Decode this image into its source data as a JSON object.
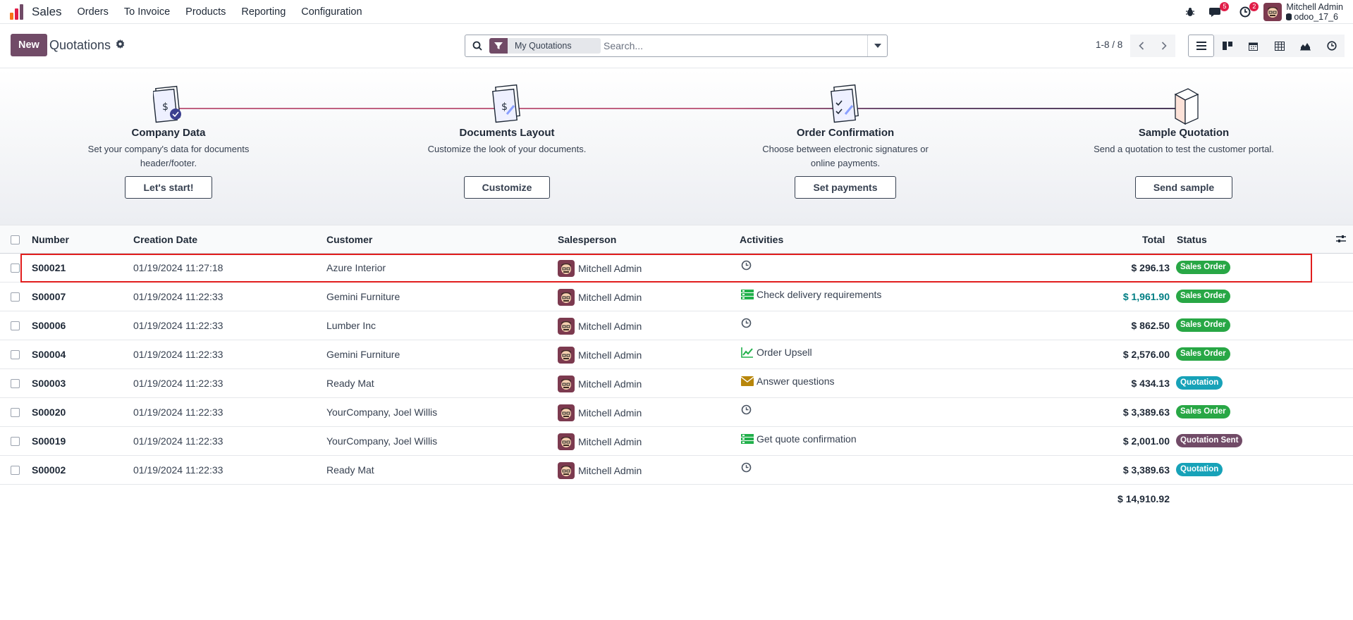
{
  "navbar": {
    "brand": "Sales",
    "menu": [
      "Orders",
      "To Invoice",
      "Products",
      "Reporting",
      "Configuration"
    ],
    "messages_count": "5",
    "activities_count": "2",
    "user_name": "Mitchell Admin",
    "db_name": "odoo_17_6"
  },
  "control": {
    "new_label": "New",
    "title": "Quotations",
    "facet": "My Quotations",
    "search_placeholder": "Search...",
    "pager": "1-8 / 8"
  },
  "onboarding": [
    {
      "title": "Company Data",
      "desc": "Set your company's data for documents header/footer.",
      "button": "Let's start!"
    },
    {
      "title": "Documents Layout",
      "desc": "Customize the look of your documents.",
      "button": "Customize"
    },
    {
      "title": "Order Confirmation",
      "desc": "Choose between electronic signatures or online payments.",
      "button": "Set payments"
    },
    {
      "title": "Sample Quotation",
      "desc": "Send a quotation to test the customer portal.",
      "button": "Send sample"
    }
  ],
  "table": {
    "headers": {
      "number": "Number",
      "date": "Creation Date",
      "customer": "Customer",
      "salesperson": "Salesperson",
      "activities": "Activities",
      "total": "Total",
      "status": "Status"
    },
    "rows": [
      {
        "number": "S00021",
        "date": "01/19/2024 11:27:18",
        "customer": "Azure Interior",
        "salesperson": "Mitchell Admin",
        "activity_icon": "clock-icon",
        "activity": "",
        "total": "$ 296.13",
        "status": "Sales Order"
      },
      {
        "number": "S00007",
        "date": "01/19/2024 11:22:33",
        "customer": "Gemini Furniture",
        "salesperson": "Mitchell Admin",
        "activity_icon": "tasks-icon",
        "activity": "Check delivery requirements",
        "total": "$ 1,961.90",
        "status": "Sales Order"
      },
      {
        "number": "S00006",
        "date": "01/19/2024 11:22:33",
        "customer": "Lumber Inc",
        "salesperson": "Mitchell Admin",
        "activity_icon": "clock-icon",
        "activity": "",
        "total": "$ 862.50",
        "status": "Sales Order"
      },
      {
        "number": "S00004",
        "date": "01/19/2024 11:22:33",
        "customer": "Gemini Furniture",
        "salesperson": "Mitchell Admin",
        "activity_icon": "upsell-icon",
        "activity": "Order Upsell",
        "total": "$ 2,576.00",
        "status": "Sales Order"
      },
      {
        "number": "S00003",
        "date": "01/19/2024 11:22:33",
        "customer": "Ready Mat",
        "salesperson": "Mitchell Admin",
        "activity_icon": "envelope-icon",
        "activity": "Answer questions",
        "total": "$ 434.13",
        "status": "Quotation"
      },
      {
        "number": "S00020",
        "date": "01/19/2024 11:22:33",
        "customer": "YourCompany, Joel Willis",
        "salesperson": "Mitchell Admin",
        "activity_icon": "clock-icon",
        "activity": "",
        "total": "$ 3,389.63",
        "status": "Sales Order"
      },
      {
        "number": "S00019",
        "date": "01/19/2024 11:22:33",
        "customer": "YourCompany, Joel Willis",
        "salesperson": "Mitchell Admin",
        "activity_icon": "tasks-icon",
        "activity": "Get quote confirmation",
        "total": "$ 2,001.00",
        "status": "Quotation Sent"
      },
      {
        "number": "S00002",
        "date": "01/19/2024 11:22:33",
        "customer": "Ready Mat",
        "salesperson": "Mitchell Admin",
        "activity_icon": "clock-icon",
        "activity": "",
        "total": "$ 3,389.63",
        "status": "Quotation"
      }
    ],
    "grand_total": "$ 14,910.92"
  },
  "colors": {
    "brand": "#714B67",
    "sales_order": "#28a745",
    "quotation": "#17a2b8",
    "quotation_sent": "#714B67",
    "highlight": "#e11d1d"
  }
}
